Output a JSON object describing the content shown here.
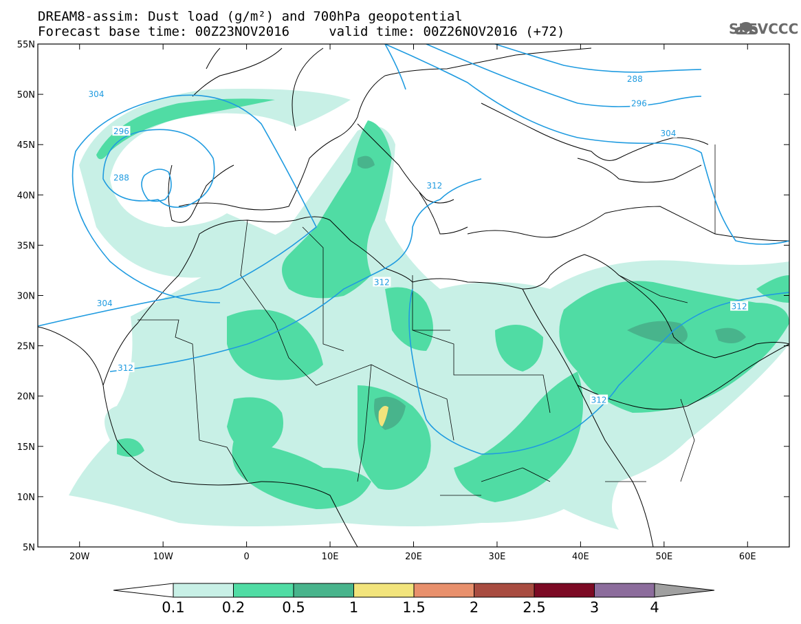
{
  "header": {
    "title_line1": "DREAM8-assim: Dust load (g/m²) and 700hPa geopotential",
    "title_line2": "Forecast base time: 00Z23NOV2016     valid time: 00Z26NOV2016 (+72)",
    "logo_text": "SEEVCCC",
    "logo_icon": "cloud-icon"
  },
  "map": {
    "lon_range": [
      -25,
      65
    ],
    "lat_range": [
      5,
      55
    ],
    "lat_ticks": [
      {
        "value": 55,
        "label": "55N"
      },
      {
        "value": 50,
        "label": "50N"
      },
      {
        "value": 45,
        "label": "45N"
      },
      {
        "value": 40,
        "label": "40N"
      },
      {
        "value": 35,
        "label": "35N"
      },
      {
        "value": 30,
        "label": "30N"
      },
      {
        "value": 25,
        "label": "25N"
      },
      {
        "value": 20,
        "label": "20N"
      },
      {
        "value": 15,
        "label": "15N"
      },
      {
        "value": 10,
        "label": "10N"
      },
      {
        "value": 5,
        "label": "5N"
      }
    ],
    "lon_ticks": [
      {
        "value": -20,
        "label": "20W"
      },
      {
        "value": -10,
        "label": "10W"
      },
      {
        "value": 0,
        "label": "0"
      },
      {
        "value": 10,
        "label": "10E"
      },
      {
        "value": 20,
        "label": "20E"
      },
      {
        "value": 30,
        "label": "30E"
      },
      {
        "value": 40,
        "label": "40E"
      },
      {
        "value": 50,
        "label": "50E"
      },
      {
        "value": 60,
        "label": "60E"
      }
    ],
    "contour_color": "#1f9be0",
    "contour_labels": [
      {
        "text": "304",
        "lon": -18,
        "lat": 50
      },
      {
        "text": "296",
        "lon": -15,
        "lat": 46.3
      },
      {
        "text": "288",
        "lon": -15,
        "lat": 41.7
      },
      {
        "text": "304",
        "lon": -17,
        "lat": 29.2
      },
      {
        "text": "312",
        "lon": -14.5,
        "lat": 22.8
      },
      {
        "text": "312",
        "lon": 16.2,
        "lat": 31.3
      },
      {
        "text": "312",
        "lon": 22.5,
        "lat": 40.9
      },
      {
        "text": "288",
        "lon": 46.5,
        "lat": 51.5
      },
      {
        "text": "296",
        "lon": 47,
        "lat": 49.1
      },
      {
        "text": "304",
        "lon": 50.5,
        "lat": 46.1
      },
      {
        "text": "312",
        "lon": 59,
        "lat": 28.9
      },
      {
        "text": "312",
        "lon": 42.2,
        "lat": 19.6
      }
    ]
  },
  "colorbar": {
    "colors": [
      "#c8f0e6",
      "#50dca4",
      "#48b48c",
      "#f2e47c",
      "#e8906c",
      "#a84c40",
      "#7c0a24",
      "#8c6c9c"
    ],
    "under_color": "#ffffff",
    "over_color": "#a0a0a0",
    "labels": [
      "0.1",
      "0.2",
      "0.5",
      "1",
      "1.5",
      "2",
      "2.5",
      "3",
      "4"
    ]
  }
}
